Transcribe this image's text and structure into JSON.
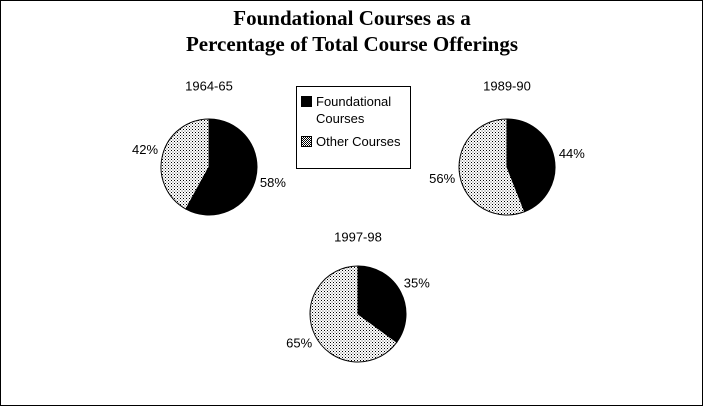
{
  "title": [
    "Foundational Courses as a",
    "Percentage of Total Course Offerings"
  ],
  "chart_data": [
    {
      "type": "pie",
      "title": "1964-65",
      "categories": [
        "Foundational Courses",
        "Other Courses"
      ],
      "values": [
        58,
        42
      ],
      "value_labels": [
        "58%",
        "42%"
      ],
      "colors": [
        "#000000",
        "#ffffff"
      ],
      "patterns": [
        "solid",
        "dots"
      ]
    },
    {
      "type": "pie",
      "title": "1989-90",
      "categories": [
        "Foundational Courses",
        "Other Courses"
      ],
      "values": [
        44,
        56
      ],
      "value_labels": [
        "44%",
        "56%"
      ],
      "colors": [
        "#000000",
        "#ffffff"
      ],
      "patterns": [
        "solid",
        "dots"
      ]
    },
    {
      "type": "pie",
      "title": "1997-98",
      "categories": [
        "Foundational Courses",
        "Other Courses"
      ],
      "values": [
        35,
        65
      ],
      "value_labels": [
        "35%",
        "65%"
      ],
      "colors": [
        "#000000",
        "#ffffff"
      ],
      "patterns": [
        "solid",
        "dots"
      ]
    }
  ]
}
